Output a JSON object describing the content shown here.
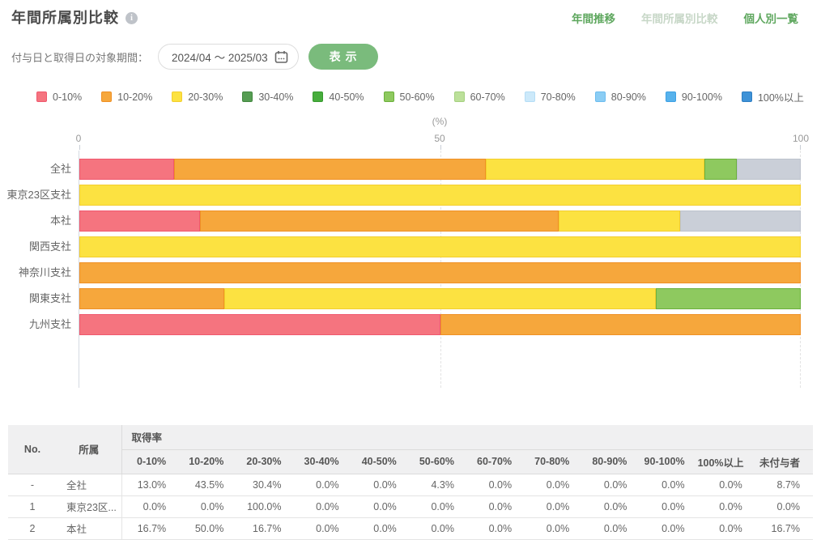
{
  "header": {
    "title": "年間所属別比較",
    "nav": [
      {
        "label": "年間推移",
        "current": false
      },
      {
        "label": "年間所属別比較",
        "current": true
      },
      {
        "label": "個人別一覧",
        "current": false
      }
    ]
  },
  "filter": {
    "label": "付与日と取得日の対象期間：",
    "period_value": "2024/04 ～ 2025/03",
    "submit_label": "表示"
  },
  "colors": {
    "accent_green": "#5ea75e",
    "button_green": "#7abb7c",
    "nav_disabled": "#c7d7c7"
  },
  "legend": [
    {
      "label": "0-10%",
      "fill": "#f5747f",
      "border": "#f0586e"
    },
    {
      "label": "10-20%",
      "fill": "#f6a73c",
      "border": "#ef9025"
    },
    {
      "label": "20-30%",
      "fill": "#fce241",
      "border": "#f3ce2e"
    },
    {
      "label": "30-40%",
      "fill": "#569d53",
      "border": "#42873f"
    },
    {
      "label": "40-50%",
      "fill": "#47ad3c",
      "border": "#369a2e"
    },
    {
      "label": "50-60%",
      "fill": "#8ec95f",
      "border": "#6bb03b"
    },
    {
      "label": "60-70%",
      "fill": "#bce09a",
      "border": "#a4d07e"
    },
    {
      "label": "70-80%",
      "fill": "#cce9fa",
      "border": "#b4ddf6"
    },
    {
      "label": "80-90%",
      "fill": "#8bcdf4",
      "border": "#6cbcef"
    },
    {
      "label": "90-100%",
      "fill": "#57b2ec",
      "border": "#3da0e4"
    },
    {
      "label": "100%以上",
      "fill": "#3e92d7",
      "border": "#2e7ec3"
    },
    {
      "label": "未付与者",
      "fill": "#cacfd8",
      "border": "#bdc3cd"
    }
  ],
  "chart_data": {
    "type": "bar",
    "stacked": true,
    "orientation": "horizontal",
    "unit": "(%)",
    "xlim": [
      0,
      100
    ],
    "x_ticks": [
      "0",
      "50",
      "100"
    ],
    "grid": "dashed-vertical",
    "legend_position": "top",
    "categories": [
      "全社",
      "東京23区支社",
      "本社",
      "関西支社",
      "神奈川支社",
      "関東支社",
      "九州支社"
    ],
    "series_keys": [
      "0-10%",
      "10-20%",
      "20-30%",
      "30-40%",
      "40-50%",
      "50-60%",
      "60-70%",
      "70-80%",
      "80-90%",
      "90-100%",
      "100%以上",
      "未付与者"
    ],
    "rows": [
      {
        "category": "全社",
        "segments": [
          {
            "key": "0-10%",
            "value": 13.0
          },
          {
            "key": "10-20%",
            "value": 43.5
          },
          {
            "key": "20-30%",
            "value": 30.4
          },
          {
            "key": "50-60%",
            "value": 4.3
          },
          {
            "key": "未付与者",
            "value": 8.7
          }
        ]
      },
      {
        "category": "東京23区支社",
        "segments": [
          {
            "key": "20-30%",
            "value": 100.0
          }
        ]
      },
      {
        "category": "本社",
        "segments": [
          {
            "key": "0-10%",
            "value": 16.7
          },
          {
            "key": "10-20%",
            "value": 50.0
          },
          {
            "key": "20-30%",
            "value": 16.7
          },
          {
            "key": "未付与者",
            "value": 16.7
          }
        ]
      },
      {
        "category": "関西支社",
        "segments": [
          {
            "key": "20-30%",
            "value": 100.0
          }
        ]
      },
      {
        "category": "神奈川支社",
        "segments": [
          {
            "key": "10-20%",
            "value": 100.0
          }
        ]
      },
      {
        "category": "関東支社",
        "segments": [
          {
            "key": "10-20%",
            "value": 20.0
          },
          {
            "key": "20-30%",
            "value": 60.0
          },
          {
            "key": "50-60%",
            "value": 20.0
          }
        ]
      },
      {
        "category": "九州支社",
        "segments": [
          {
            "key": "0-10%",
            "value": 50.0
          },
          {
            "key": "10-20%",
            "value": 50.0
          }
        ]
      }
    ]
  },
  "table": {
    "col_no": "No.",
    "col_dept": "所属",
    "col_group": "取得率",
    "sub_columns": [
      "0-10%",
      "10-20%",
      "20-30%",
      "30-40%",
      "40-50%",
      "50-60%",
      "60-70%",
      "70-80%",
      "80-90%",
      "90-100%",
      "100%以上",
      "未付与者"
    ],
    "rows": [
      {
        "no": "-",
        "dept": "全社",
        "values": [
          "13.0%",
          "43.5%",
          "30.4%",
          "0.0%",
          "0.0%",
          "4.3%",
          "0.0%",
          "0.0%",
          "0.0%",
          "0.0%",
          "0.0%",
          "8.7%"
        ]
      },
      {
        "no": "1",
        "dept": "東京23区...",
        "values": [
          "0.0%",
          "0.0%",
          "100.0%",
          "0.0%",
          "0.0%",
          "0.0%",
          "0.0%",
          "0.0%",
          "0.0%",
          "0.0%",
          "0.0%",
          "0.0%"
        ]
      },
      {
        "no": "2",
        "dept": "本社",
        "values": [
          "16.7%",
          "50.0%",
          "16.7%",
          "0.0%",
          "0.0%",
          "0.0%",
          "0.0%",
          "0.0%",
          "0.0%",
          "0.0%",
          "0.0%",
          "16.7%"
        ]
      }
    ]
  }
}
